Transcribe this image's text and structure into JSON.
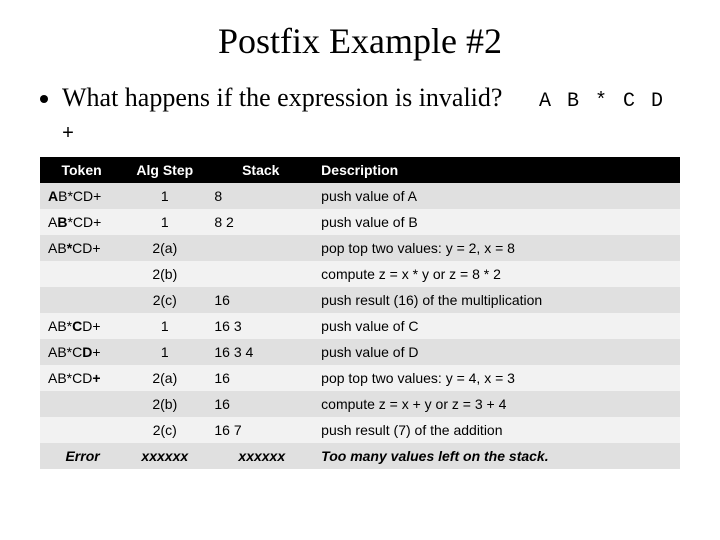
{
  "title": "Postfix Example #2",
  "bullet": {
    "text_before": "What happens if the expression is invalid?",
    "code": "A B * C D +"
  },
  "table": {
    "headers": [
      "Token",
      "Alg Step",
      "Stack",
      "Description"
    ],
    "col_widths_pct": [
      13,
      13,
      17,
      57
    ],
    "header_bg": "#000000",
    "header_color": "#ffffff",
    "row_bg_odd": "#e0e0e0",
    "row_bg_even": "#f2f2f2",
    "font_family": "Arial",
    "font_size_pt": 14,
    "rows": [
      {
        "token_html": "<span class='tok-b'>A</span>B*CD+",
        "step": "1",
        "stack": "8",
        "desc": "push value of A"
      },
      {
        "token_html": "A<span class='tok-b'>B</span>*CD+",
        "step": "1",
        "stack": "8 2",
        "desc": "push value of B"
      },
      {
        "token_html": "AB<span class='tok-b'>*</span>CD+",
        "step": "2(a)",
        "stack": "",
        "desc": "pop top two values: y = 2, x = 8"
      },
      {
        "token_html": "",
        "step": "2(b)",
        "stack": "",
        "desc": "compute z = x * y or z = 8 * 2"
      },
      {
        "token_html": "",
        "step": "2(c)",
        "stack": "16",
        "desc": "push result (16) of the multiplication"
      },
      {
        "token_html": "AB*<span class='tok-b'>C</span>D+",
        "step": "1",
        "stack": "16 3",
        "desc": "push value of C"
      },
      {
        "token_html": "AB*C<span class='tok-b'>D</span>+",
        "step": "1",
        "stack": "16 3 4",
        "desc": "push value of D"
      },
      {
        "token_html": "AB*CD<span class='tok-b'>+</span>",
        "step": "2(a)",
        "stack": "16",
        "desc": "pop top two values: y = 4, x = 3"
      },
      {
        "token_html": "",
        "step": "2(b)",
        "stack": "16",
        "desc": "compute z = x + y or z = 3 + 4"
      },
      {
        "token_html": "",
        "step": "2(c)",
        "stack": "16 7",
        "desc": "push result (7) of the addition"
      },
      {
        "token_html": "Error",
        "step": "xxxxxx",
        "stack": "xxxxxx",
        "desc": "Too many values left on the stack.",
        "last": true
      }
    ]
  },
  "colors": {
    "background": "#ffffff",
    "text": "#000000"
  },
  "fonts": {
    "title_family": "Georgia",
    "title_size": 36,
    "body_family": "Georgia",
    "body_size": 26,
    "code_family": "Courier New",
    "code_size": 20
  }
}
